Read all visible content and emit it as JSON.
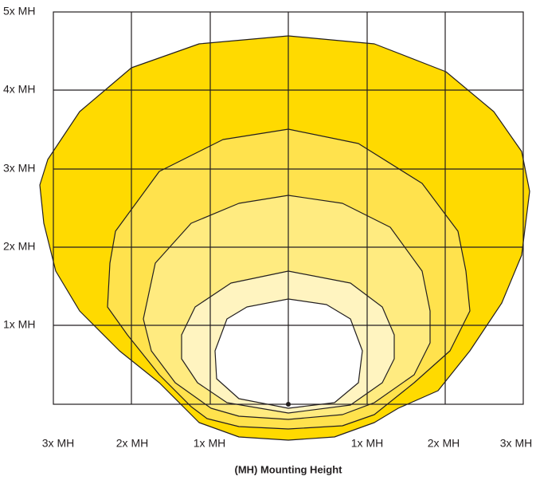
{
  "y_axis": {
    "labels": [
      "5x MH",
      "4x MH",
      "3x MH",
      "2x MH",
      "1x MH"
    ]
  },
  "x_axis": {
    "labels": [
      "3x MH",
      "2x MH",
      "1x MH",
      "1x MH",
      "2x MH",
      "3x MH"
    ],
    "title": "(MH) Mounting Height"
  }
}
